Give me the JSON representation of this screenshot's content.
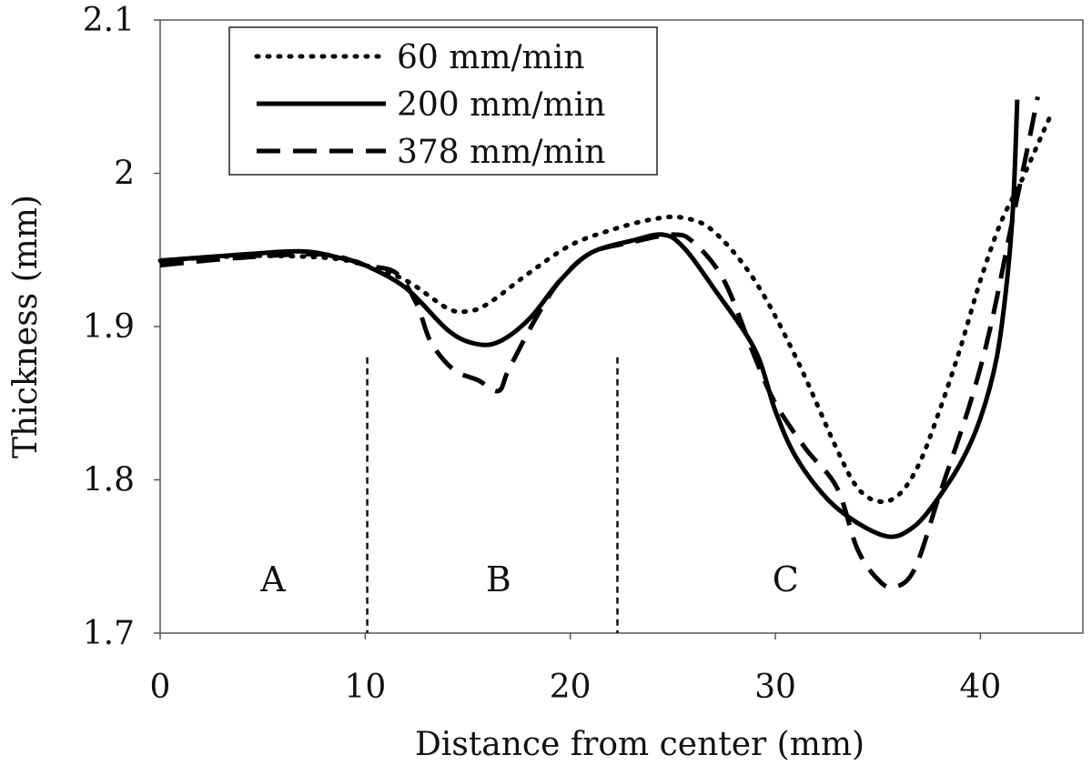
{
  "chart_data": {
    "type": "line",
    "xlabel": "Distance from center (mm)",
    "ylabel": "Thickness (mm)",
    "xlim": [
      0,
      45
    ],
    "ylim": [
      1.7,
      2.1
    ],
    "x_ticks": [
      0,
      10,
      20,
      30,
      40
    ],
    "x_tick_labels": [
      "0",
      "10",
      "20",
      "30",
      "40"
    ],
    "y_ticks": [
      1.7,
      1.8,
      1.9,
      2.0,
      2.1
    ],
    "y_tick_labels": [
      "1.7",
      "1.8",
      "1.9",
      "2",
      "2.1"
    ],
    "grid": false,
    "legend_position": "top-left",
    "series": [
      {
        "name": "60 mm/min",
        "style": "dotted",
        "color": "#000000",
        "points": [
          [
            0,
            1.943
          ],
          [
            4,
            1.946
          ],
          [
            8,
            1.945
          ],
          [
            10,
            1.94
          ],
          [
            12,
            1.93
          ],
          [
            14,
            1.912
          ],
          [
            15,
            1.91
          ],
          [
            16,
            1.915
          ],
          [
            18,
            1.935
          ],
          [
            20,
            1.953
          ],
          [
            22,
            1.963
          ],
          [
            24,
            1.97
          ],
          [
            25.5,
            1.971
          ],
          [
            27,
            1.962
          ],
          [
            29,
            1.93
          ],
          [
            31,
            1.88
          ],
          [
            33,
            1.82
          ],
          [
            34,
            1.795
          ],
          [
            35,
            1.786
          ],
          [
            36,
            1.79
          ],
          [
            37,
            1.81
          ],
          [
            38,
            1.845
          ],
          [
            39,
            1.885
          ],
          [
            40,
            1.93
          ],
          [
            41,
            1.968
          ],
          [
            42,
            1.995
          ],
          [
            43,
            2.025
          ],
          [
            43.5,
            2.04
          ]
        ]
      },
      {
        "name": "200 mm/min",
        "style": "solid",
        "color": "#000000",
        "points": [
          [
            0,
            1.943
          ],
          [
            4,
            1.947
          ],
          [
            7,
            1.949
          ],
          [
            9,
            1.944
          ],
          [
            10,
            1.94
          ],
          [
            12,
            1.925
          ],
          [
            14,
            1.898
          ],
          [
            15.3,
            1.889
          ],
          [
            16.5,
            1.89
          ],
          [
            18,
            1.905
          ],
          [
            19.5,
            1.93
          ],
          [
            21,
            1.948
          ],
          [
            23,
            1.956
          ],
          [
            24.5,
            1.96
          ],
          [
            25.5,
            1.952
          ],
          [
            27,
            1.925
          ],
          [
            29,
            1.885
          ],
          [
            30,
            1.845
          ],
          [
            31,
            1.815
          ],
          [
            32.5,
            1.788
          ],
          [
            34,
            1.772
          ],
          [
            35.5,
            1.763
          ],
          [
            36.5,
            1.767
          ],
          [
            37.5,
            1.78
          ],
          [
            39,
            1.81
          ],
          [
            40,
            1.84
          ],
          [
            40.8,
            1.88
          ],
          [
            41.3,
            1.93
          ],
          [
            41.6,
            1.98
          ],
          [
            41.8,
            2.048
          ]
        ]
      },
      {
        "name": "378 mm/min",
        "style": "dashed",
        "color": "#000000",
        "points": [
          [
            0,
            1.94
          ],
          [
            4,
            1.945
          ],
          [
            8,
            1.947
          ],
          [
            10,
            1.94
          ],
          [
            11.5,
            1.935
          ],
          [
            12.5,
            1.915
          ],
          [
            13.2,
            1.89
          ],
          [
            14.3,
            1.872
          ],
          [
            15.5,
            1.865
          ],
          [
            16.5,
            1.858
          ],
          [
            17,
            1.872
          ],
          [
            18.3,
            1.905
          ],
          [
            19.5,
            1.93
          ],
          [
            21,
            1.948
          ],
          [
            23,
            1.955
          ],
          [
            25,
            1.96
          ],
          [
            26,
            1.955
          ],
          [
            27.5,
            1.93
          ],
          [
            29,
            1.88
          ],
          [
            30,
            1.85
          ],
          [
            31.5,
            1.82
          ],
          [
            33,
            1.795
          ],
          [
            34,
            1.755
          ],
          [
            35,
            1.735
          ],
          [
            35.8,
            1.73
          ],
          [
            36.8,
            1.742
          ],
          [
            38,
            1.79
          ],
          [
            39.5,
            1.85
          ],
          [
            40.5,
            1.9
          ],
          [
            41.5,
            1.965
          ],
          [
            42.2,
            2.01
          ],
          [
            42.8,
            2.05
          ]
        ]
      }
    ],
    "vertical_lines": [
      10.1,
      22.3
    ],
    "annotations": [
      {
        "text": "A",
        "x": 5.5,
        "y": 1.735
      },
      {
        "text": "B",
        "x": 16.5,
        "y": 1.735
      },
      {
        "text": "C",
        "x": 30.5,
        "y": 1.735
      }
    ]
  }
}
